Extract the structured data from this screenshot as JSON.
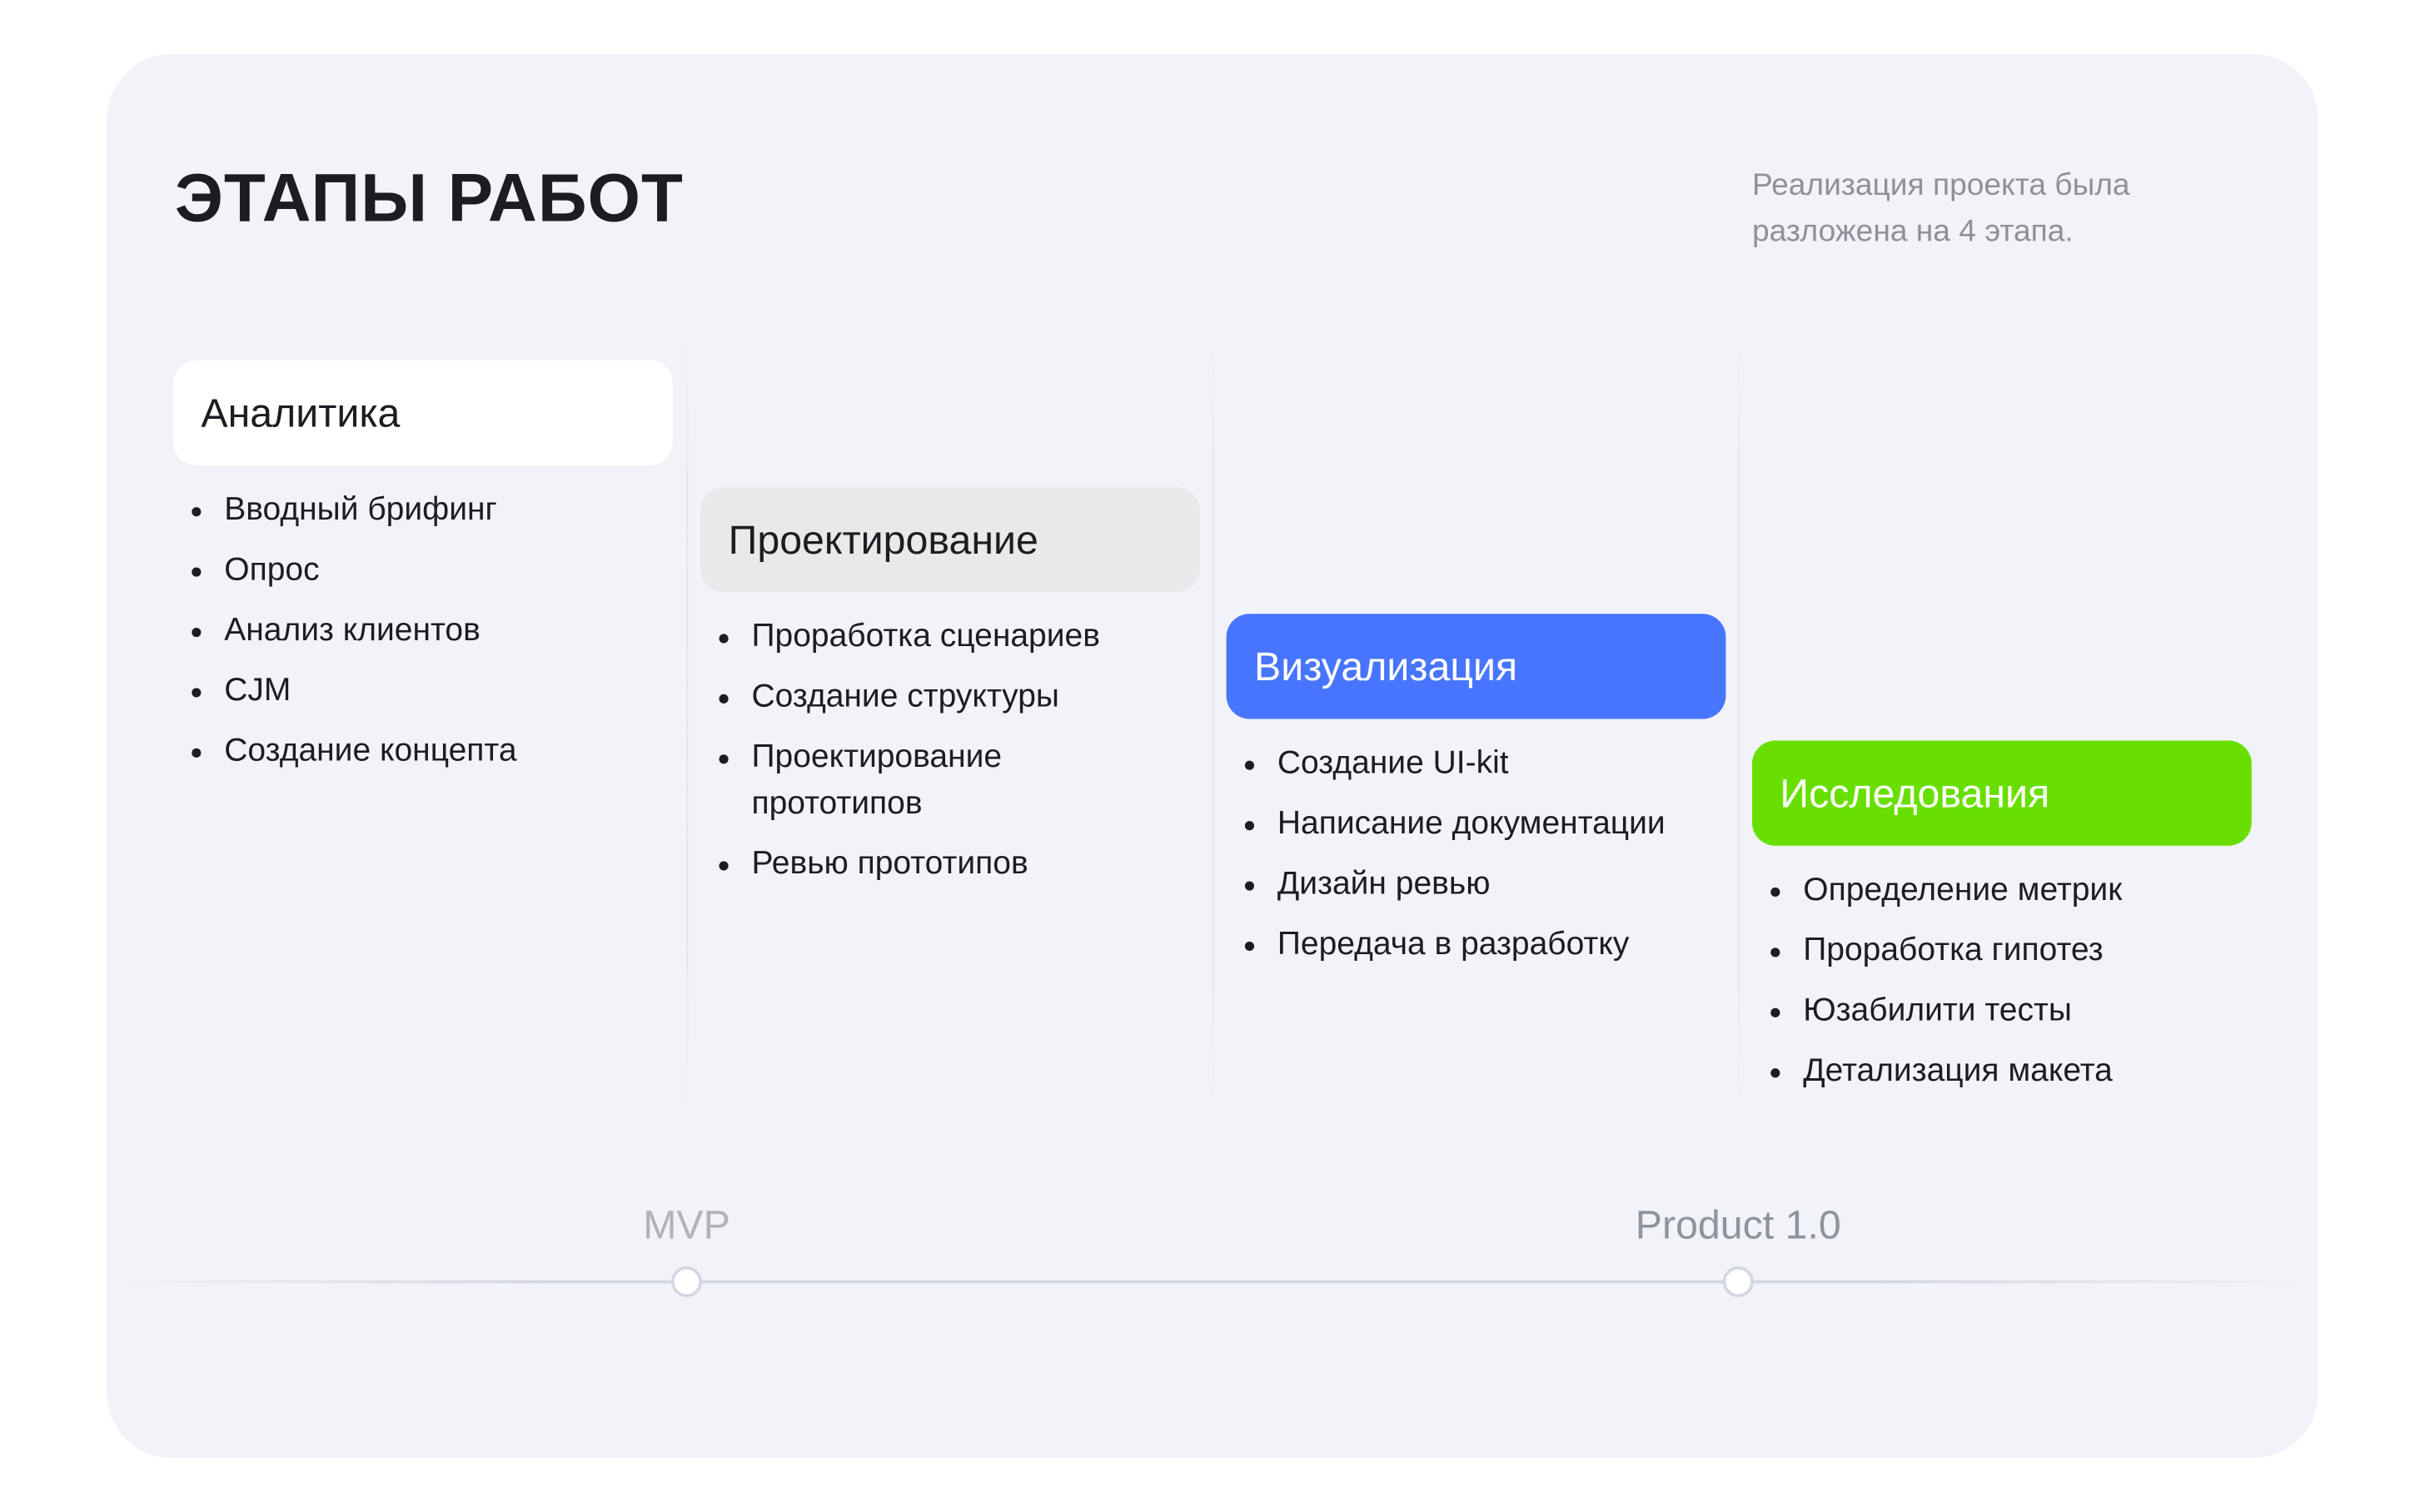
{
  "header": {
    "title": "ЭТАПЫ РАБОТ",
    "subtitle": "Реализация проекта была разложена на 4 этапа."
  },
  "colors": {
    "card_bg": "#f2f3f8",
    "analytics": "#ffffff",
    "design": "#e8e9ea",
    "visual": "#4775ff",
    "research": "#68df00"
  },
  "stages": [
    {
      "title": "Аналитика",
      "items": [
        "Вводный брифинг",
        "Опрос",
        "Анализ клиентов",
        "CJM",
        "Создание концепта"
      ]
    },
    {
      "title": "Проектирование",
      "items": [
        "Проработка сценариев",
        "Создание структуры",
        "Проектирование прототипов",
        "Ревью прототипов"
      ]
    },
    {
      "title": "Визуализация",
      "items": [
        "Создание UI-kit",
        "Написание документации",
        "Дизайн ревью",
        "Передача в разработку"
      ]
    },
    {
      "title": "Исследования",
      "items": [
        "Определение метрик",
        "Проработка гипотез",
        "Юзабилити тесты",
        "Детализация макета"
      ]
    }
  ],
  "milestones": [
    {
      "label": "MVP"
    },
    {
      "label": "Product 1.0"
    }
  ]
}
